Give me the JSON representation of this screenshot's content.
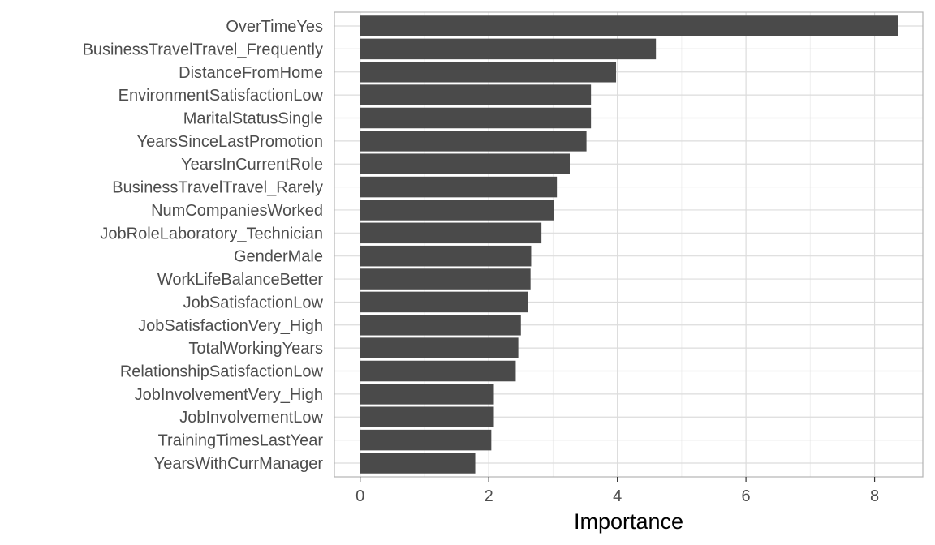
{
  "chart_data": {
    "type": "bar",
    "orientation": "horizontal",
    "categories": [
      "OverTimeYes",
      "BusinessTravelTravel_Frequently",
      "DistanceFromHome",
      "EnvironmentSatisfactionLow",
      "MaritalStatusSingle",
      "YearsSinceLastPromotion",
      "YearsInCurrentRole",
      "BusinessTravelTravel_Rarely",
      "NumCompaniesWorked",
      "JobRoleLaboratory_Technician",
      "GenderMale",
      "WorkLifeBalanceBetter",
      "JobSatisfactionLow",
      "JobSatisfactionVery_High",
      "TotalWorkingYears",
      "RelationshipSatisfactionLow",
      "JobInvolvementVery_High",
      "JobInvolvementLow",
      "TrainingTimesLastYear",
      "YearsWithCurrManager"
    ],
    "values": [
      8.36,
      4.6,
      3.98,
      3.59,
      3.59,
      3.52,
      3.26,
      3.06,
      3.01,
      2.82,
      2.66,
      2.65,
      2.61,
      2.5,
      2.46,
      2.42,
      2.08,
      2.08,
      2.04,
      1.79
    ],
    "title": "",
    "xlabel": "Importance",
    "ylabel": "",
    "xlim": [
      -0.4,
      8.75
    ],
    "x_ticks": [
      0,
      2,
      4,
      6,
      8
    ],
    "grid": true,
    "colors": {
      "bar": "#4a4a4a",
      "grid_major": "#dcdcdc",
      "grid_minor": "#efefef",
      "border": "#b3b3b3",
      "text": "#4d4d4d"
    }
  }
}
